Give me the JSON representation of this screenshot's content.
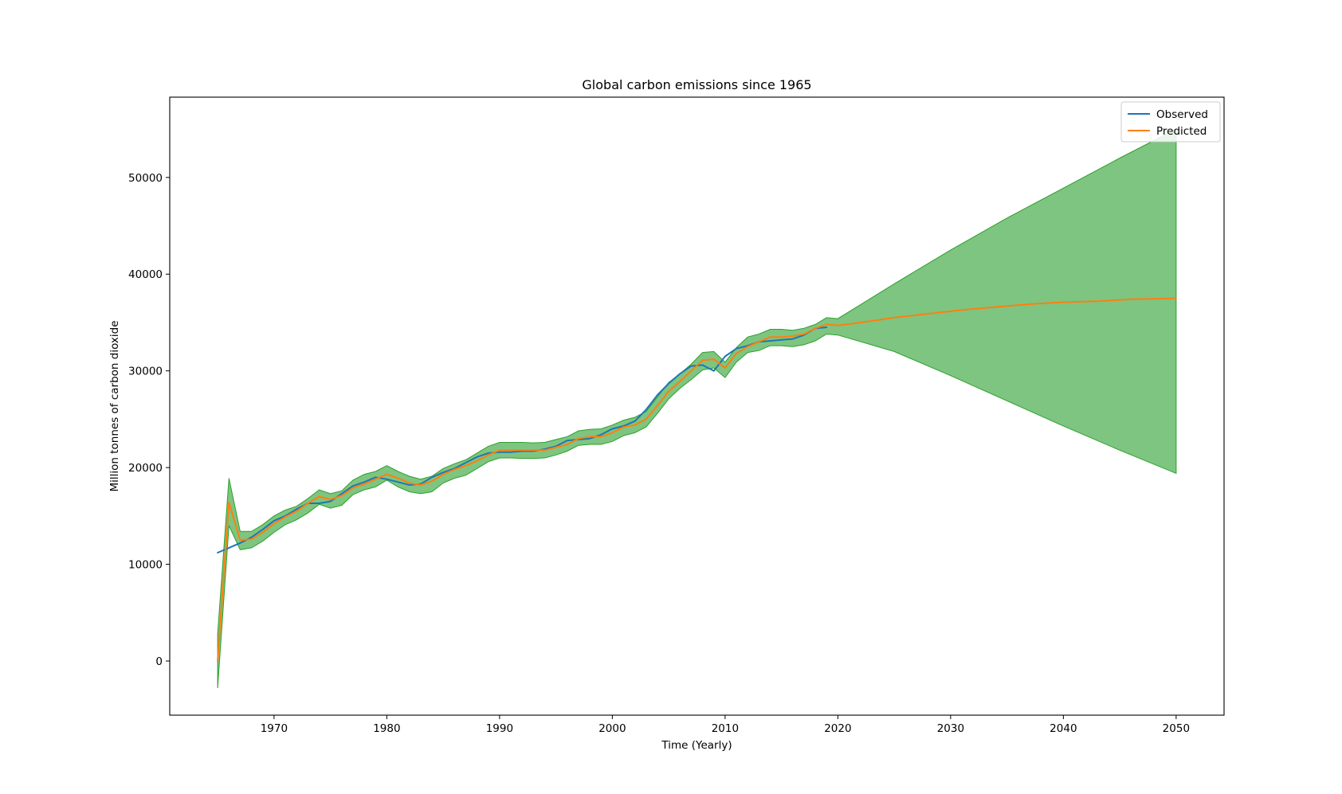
{
  "chart_data": {
    "type": "line",
    "title": "Global carbon emissions since 1965",
    "xlabel": "Time (Yearly)",
    "ylabel": "Million tonnes of carbon dioxide",
    "xlim": [
      1960.75,
      2054.25
    ],
    "ylim": [
      -5600,
      58300
    ],
    "xticks": [
      1970,
      1980,
      1990,
      2000,
      2010,
      2020,
      2030,
      2040,
      2050
    ],
    "yticks": [
      0,
      10000,
      20000,
      30000,
      40000,
      50000
    ],
    "legend": {
      "location": "upper right",
      "entries": [
        "Observed",
        "Predicted"
      ]
    },
    "grid": false,
    "colors": {
      "observed": "#1f77b4",
      "predicted": "#ff7f0e",
      "band_fill": "#4caf50",
      "band_edge": "#2ca02c"
    },
    "series": [
      {
        "name": "Observed",
        "x": [
          1965,
          1966,
          1967,
          1968,
          1969,
          1970,
          1971,
          1972,
          1973,
          1974,
          1975,
          1976,
          1977,
          1978,
          1979,
          1980,
          1981,
          1982,
          1983,
          1984,
          1985,
          1986,
          1987,
          1988,
          1989,
          1990,
          1991,
          1992,
          1993,
          1994,
          1995,
          1996,
          1997,
          1998,
          1999,
          2000,
          2001,
          2002,
          2003,
          2004,
          2005,
          2006,
          2007,
          2008,
          2009,
          2010,
          2011,
          2012,
          2013,
          2014,
          2015,
          2016,
          2017,
          2018,
          2019
        ],
        "values": [
          11200,
          11700,
          12200,
          12800,
          13600,
          14500,
          15000,
          15700,
          16300,
          16300,
          16500,
          17300,
          18100,
          18500,
          19000,
          18800,
          18500,
          18200,
          18300,
          19000,
          19500,
          19900,
          20500,
          21100,
          21500,
          21600,
          21600,
          21700,
          21700,
          21900,
          22200,
          22800,
          22900,
          23000,
          23400,
          24000,
          24300,
          24800,
          26000,
          27500,
          28700,
          29700,
          30500,
          30600,
          30000,
          31500,
          32300,
          32600,
          33000,
          33100,
          33200,
          33300,
          33700,
          34400,
          34500
        ]
      },
      {
        "name": "Predicted",
        "x": [
          1965,
          1966,
          1967,
          1968,
          1969,
          1970,
          1971,
          1972,
          1973,
          1974,
          1975,
          1976,
          1977,
          1978,
          1979,
          1980,
          1981,
          1982,
          1983,
          1984,
          1985,
          1986,
          1987,
          1988,
          1989,
          1990,
          1991,
          1992,
          1993,
          1994,
          1995,
          1996,
          1997,
          1998,
          1999,
          2000,
          2001,
          2002,
          2003,
          2004,
          2005,
          2006,
          2007,
          2008,
          2009,
          2010,
          2011,
          2012,
          2013,
          2014,
          2015,
          2016,
          2017,
          2018,
          2019,
          2020,
          2022,
          2025,
          2028,
          2031,
          2034,
          2037,
          2040,
          2043,
          2046,
          2050
        ],
        "values": [
          0,
          16400,
          12500,
          12600,
          13300,
          14200,
          14900,
          15500,
          16300,
          17000,
          16700,
          17100,
          17900,
          18300,
          18800,
          19300,
          18900,
          18400,
          18200,
          18600,
          19300,
          19800,
          20200,
          20700,
          21300,
          21800,
          21800,
          21800,
          21800,
          21800,
          22100,
          22400,
          23000,
          23200,
          23200,
          23600,
          24200,
          24400,
          25000,
          26400,
          27900,
          28900,
          30000,
          31100,
          31200,
          30300,
          31800,
          32500,
          33000,
          33500,
          33500,
          33600,
          33800,
          34400,
          34800,
          34700,
          35000,
          35500,
          35900,
          36300,
          36600,
          36900,
          37100,
          37200,
          37400,
          37500
        ]
      }
    ],
    "confidence_band": {
      "x": [
        1965,
        1966,
        1967,
        1968,
        1969,
        1970,
        1971,
        1972,
        1973,
        1974,
        1975,
        1976,
        1977,
        1978,
        1979,
        1980,
        1981,
        1982,
        1983,
        1984,
        1985,
        1986,
        1987,
        1988,
        1989,
        1990,
        1991,
        1992,
        1993,
        1994,
        1995,
        1996,
        1997,
        1998,
        1999,
        2000,
        2001,
        2002,
        2003,
        2004,
        2005,
        2006,
        2007,
        2008,
        2009,
        2010,
        2011,
        2012,
        2013,
        2014,
        2015,
        2016,
        2017,
        2018,
        2019,
        2020,
        2025,
        2030,
        2035,
        2040,
        2045,
        2050
      ],
      "lower": [
        -2800,
        14000,
        11500,
        11700,
        12400,
        13300,
        14100,
        14600,
        15300,
        16200,
        15800,
        16100,
        17200,
        17700,
        18000,
        18700,
        18000,
        17500,
        17300,
        17500,
        18400,
        18900,
        19200,
        19900,
        20600,
        21000,
        21000,
        20950,
        20950,
        21000,
        21300,
        21700,
        22300,
        22400,
        22400,
        22700,
        23300,
        23600,
        24200,
        25600,
        27100,
        28200,
        29100,
        30100,
        30300,
        29300,
        30900,
        31900,
        32100,
        32600,
        32600,
        32500,
        32700,
        33100,
        33800,
        33700,
        32000,
        29500,
        26900,
        24300,
        21800,
        19400
      ],
      "upper": [
        2800,
        18900,
        13400,
        13400,
        14100,
        15000,
        15600,
        16000,
        16800,
        17700,
        17300,
        17600,
        18700,
        19300,
        19600,
        20200,
        19600,
        19100,
        18800,
        19100,
        19900,
        20400,
        20800,
        21500,
        22200,
        22600,
        22600,
        22600,
        22550,
        22600,
        22900,
        23200,
        23800,
        23950,
        24000,
        24400,
        24900,
        25200,
        25800,
        27300,
        28800,
        29700,
        30700,
        31900,
        32000,
        30900,
        32400,
        33500,
        33800,
        34300,
        34300,
        34200,
        34400,
        34800,
        35500,
        35400,
        39000,
        42500,
        45800,
        48900,
        52000,
        55000
      ]
    }
  }
}
